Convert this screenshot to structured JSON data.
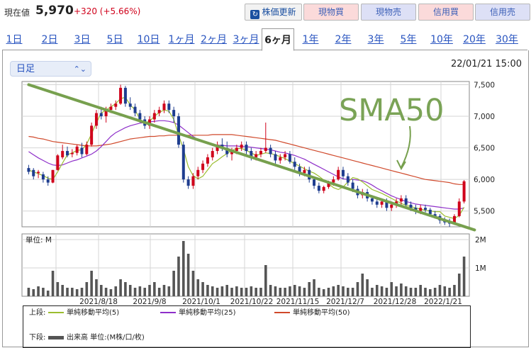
{
  "header": {
    "price_label": "現在値",
    "price": "5,970",
    "change": "+320 (+5.66%)",
    "buttons": {
      "update": "株価更新",
      "cash_buy": "現物買",
      "cash_sell": "現物売",
      "margin_buy": "信用買",
      "margin_sell": "信用売"
    }
  },
  "tabs": [
    "1日",
    "2日",
    "3日",
    "5日",
    "10日",
    "1ヶ月",
    "2ヶ月",
    "3ヶ月",
    "6ヶ月",
    "1年",
    "2年",
    "3年",
    "5年",
    "10年",
    "20年",
    "30年"
  ],
  "active_tab": "6ヶ月",
  "interval_select": "日足",
  "timestamp": "22/01/21 15:00",
  "annotation": "SMA50",
  "colors": {
    "up": "#d0021b",
    "down": "#1e3d8f",
    "sma5": "#9bbd2f",
    "sma25": "#8e2fc9",
    "sma50": "#d0492b",
    "trend": "#77a04e",
    "volume": "#555555"
  },
  "chart_data": {
    "type": "candlestick",
    "price_ylim": [
      5250,
      7550
    ],
    "price_ticks": [
      "7,500",
      "7,000",
      "6,500",
      "6,000",
      "5,500"
    ],
    "volume_ylabel": "単位: M",
    "volume_ticks": [
      "2M",
      "1M"
    ],
    "x_labels": [
      "2021/8/18",
      "2021/9/8",
      "2021/10/1",
      "2021/10/22",
      "2021/11/15",
      "2021/12/7",
      "2021/12/28",
      "2022/1/21"
    ],
    "trendline": {
      "start": {
        "day": 0,
        "price": 7500
      },
      "end": {
        "day": 91,
        "price": 5200
      }
    },
    "sma5": [
      6150,
      6120,
      6090,
      6060,
      6020,
      6000,
      6120,
      6260,
      6390,
      6420,
      6460,
      6470,
      6560,
      6720,
      6900,
      7050,
      7100,
      7150,
      7200,
      7280,
      7300,
      7180,
      7100,
      6950,
      6900,
      6920,
      7000,
      7060,
      7100,
      7080,
      6950,
      6700,
      6480,
      6200,
      6060,
      6010,
      6050,
      6150,
      6250,
      6300,
      6360,
      6410,
      6460,
      6490,
      6490,
      6460,
      6420,
      6380,
      6400,
      6420,
      6410,
      6390,
      6360,
      6330,
      6290,
      6250,
      6210,
      6170,
      6130,
      6100,
      6050,
      5990,
      5930,
      5870,
      5840,
      5880,
      5960,
      6030,
      6010,
      5960,
      5900,
      5840,
      5810,
      5780,
      5740,
      5700,
      5660,
      5620,
      5590,
      5570,
      5550,
      5530,
      5510,
      5500,
      5490,
      5490,
      5420,
      5400,
      5380,
      5430,
      5560
    ],
    "sma25": [
      6440,
      6390,
      6340,
      6300,
      6260,
      6230,
      6220,
      6230,
      6260,
      6290,
      6310,
      6340,
      6370,
      6400,
      6450,
      6520,
      6600,
      6680,
      6740,
      6780,
      6820,
      6850,
      6870,
      6890,
      6900,
      6910,
      6920,
      6930,
      6930,
      6920,
      6900,
      6860,
      6800,
      6740,
      6680,
      6630,
      6600,
      6570,
      6550,
      6540,
      6540,
      6530,
      6530,
      6530,
      6520,
      6520,
      6510,
      6500,
      6490,
      6480,
      6470,
      6450,
      6430,
      6420,
      6400,
      6380,
      6350,
      6320,
      6280,
      6240,
      6200,
      6160,
      6120,
      6080,
      6040,
      6010,
      6000,
      6000,
      5990,
      5980,
      5950,
      5910,
      5860,
      5820,
      5780,
      5740,
      5710,
      5680,
      5650,
      5630,
      5610,
      5600,
      5590,
      5580,
      5570,
      5560,
      5550,
      5540,
      5530,
      5530,
      5550
    ],
    "sma50": [
      6680,
      6670,
      6650,
      6640,
      6620,
      6600,
      6590,
      6580,
      6570,
      6560,
      6550,
      6540,
      6530,
      6530,
      6530,
      6540,
      6550,
      6560,
      6580,
      6600,
      6620,
      6640,
      6650,
      6660,
      6670,
      6680,
      6680,
      6690,
      6690,
      6700,
      6700,
      6700,
      6700,
      6700,
      6700,
      6700,
      6700,
      6700,
      6710,
      6710,
      6710,
      6710,
      6710,
      6700,
      6690,
      6680,
      6670,
      6660,
      6650,
      6640,
      6630,
      6620,
      6600,
      6580,
      6560,
      6540,
      6520,
      6500,
      6480,
      6460,
      6440,
      6420,
      6400,
      6380,
      6360,
      6340,
      6320,
      6300,
      6280,
      6260,
      6240,
      6220,
      6200,
      6180,
      6160,
      6140,
      6120,
      6100,
      6080,
      6060,
      6040,
      6020,
      6000,
      5990,
      5980,
      5970,
      5960,
      5950,
      5930,
      5920,
      5920
    ],
    "candles": [
      [
        6180,
        6230,
        6080,
        6120
      ],
      [
        6150,
        6180,
        6000,
        6050
      ],
      [
        6100,
        6150,
        6020,
        6120
      ],
      [
        6080,
        6120,
        5950,
        6000
      ],
      [
        6000,
        6050,
        5900,
        5950
      ],
      [
        5950,
        6150,
        5940,
        6150
      ],
      [
        6150,
        6400,
        6140,
        6380
      ],
      [
        6350,
        6550,
        6320,
        6450
      ],
      [
        6450,
        6520,
        6350,
        6380
      ],
      [
        6400,
        6480,
        6350,
        6420
      ],
      [
        6420,
        6550,
        6380,
        6520
      ],
      [
        6500,
        6580,
        6350,
        6400
      ],
      [
        6400,
        6600,
        6380,
        6550
      ],
      [
        6550,
        6900,
        6520,
        6850
      ],
      [
        6850,
        7100,
        6800,
        7050
      ],
      [
        7050,
        7150,
        6950,
        7000
      ],
      [
        7000,
        7150,
        6900,
        7100
      ],
      [
        7100,
        7200,
        7050,
        7150
      ],
      [
        7150,
        7250,
        7100,
        7200
      ],
      [
        7200,
        7500,
        7180,
        7450
      ],
      [
        7450,
        7480,
        7150,
        7200
      ],
      [
        7200,
        7300,
        7100,
        7150
      ],
      [
        7150,
        7200,
        7000,
        7050
      ],
      [
        7050,
        7100,
        6900,
        6950
      ],
      [
        6950,
        7000,
        6800,
        6850
      ],
      [
        6850,
        7000,
        6800,
        6950
      ],
      [
        6950,
        7100,
        6900,
        7050
      ],
      [
        7050,
        7150,
        7000,
        7100
      ],
      [
        7100,
        7250,
        7050,
        7200
      ],
      [
        7200,
        7250,
        7050,
        7100
      ],
      [
        7100,
        7150,
        6900,
        7000
      ],
      [
        7000,
        7050,
        6500,
        6550
      ],
      [
        6550,
        6600,
        5950,
        6000
      ],
      [
        6000,
        6050,
        5850,
        5900
      ],
      [
        5900,
        6100,
        5850,
        6050
      ],
      [
        6050,
        6200,
        6000,
        6150
      ],
      [
        6150,
        6300,
        6100,
        6250
      ],
      [
        6250,
        6400,
        6200,
        6350
      ],
      [
        6350,
        6500,
        6300,
        6450
      ],
      [
        6450,
        6600,
        6400,
        6550
      ],
      [
        6550,
        6650,
        6450,
        6500
      ],
      [
        6500,
        6600,
        6350,
        6400
      ],
      [
        6400,
        6500,
        6300,
        6450
      ],
      [
        6450,
        6550,
        6400,
        6500
      ],
      [
        6500,
        6600,
        6450,
        6550
      ],
      [
        6550,
        6600,
        6400,
        6450
      ],
      [
        6450,
        6500,
        6300,
        6350
      ],
      [
        6350,
        6450,
        6300,
        6400
      ],
      [
        6400,
        6500,
        6350,
        6450
      ],
      [
        6450,
        6900,
        6420,
        6500
      ],
      [
        6500,
        6550,
        6350,
        6400
      ],
      [
        6400,
        6450,
        6250,
        6300
      ],
      [
        6300,
        6400,
        6250,
        6350
      ],
      [
        6350,
        6450,
        6300,
        6400
      ],
      [
        6400,
        6450,
        6250,
        6280
      ],
      [
        6280,
        6350,
        6150,
        6200
      ],
      [
        6200,
        6250,
        6050,
        6100
      ],
      [
        6100,
        6200,
        6050,
        6150
      ],
      [
        6150,
        6200,
        5950,
        6000
      ],
      [
        6000,
        6050,
        5850,
        5900
      ],
      [
        5900,
        5950,
        5780,
        5820
      ],
      [
        5820,
        5900,
        5780,
        5880
      ],
      [
        5880,
        5980,
        5850,
        5950
      ],
      [
        5950,
        6050,
        5900,
        6000
      ],
      [
        6000,
        6200,
        5980,
        6150
      ],
      [
        6150,
        6200,
        6000,
        6050
      ],
      [
        6050,
        6100,
        5900,
        5950
      ],
      [
        5950,
        6000,
        5800,
        5850
      ],
      [
        5850,
        5900,
        5700,
        5750
      ],
      [
        5750,
        5850,
        5700,
        5800
      ],
      [
        5800,
        5850,
        5650,
        5700
      ],
      [
        5700,
        5750,
        5600,
        5650
      ],
      [
        5650,
        5700,
        5550,
        5600
      ],
      [
        5600,
        5700,
        5550,
        5650
      ],
      [
        5650,
        5700,
        5500,
        5550
      ],
      [
        5550,
        5650,
        5500,
        5600
      ],
      [
        5600,
        5700,
        5550,
        5650
      ],
      [
        5650,
        5750,
        5600,
        5700
      ],
      [
        5700,
        5750,
        5550,
        5600
      ],
      [
        5600,
        5650,
        5500,
        5550
      ],
      [
        5550,
        5600,
        5450,
        5500
      ],
      [
        5500,
        5600,
        5450,
        5550
      ],
      [
        5550,
        5600,
        5480,
        5520
      ],
      [
        5520,
        5550,
        5420,
        5450
      ],
      [
        5450,
        5500,
        5380,
        5420
      ],
      [
        5420,
        5450,
        5300,
        5350
      ],
      [
        5350,
        5400,
        5280,
        5320
      ],
      [
        5320,
        5380,
        5250,
        5300
      ],
      [
        5300,
        5450,
        5280,
        5420
      ],
      [
        5420,
        5700,
        5400,
        5650
      ],
      [
        5650,
        5990,
        5620,
        5970
      ]
    ],
    "volume": [
      0.3,
      0.25,
      0.35,
      0.3,
      0.2,
      0.9,
      0.5,
      0.4,
      0.3,
      0.3,
      0.25,
      0.3,
      0.5,
      0.9,
      0.6,
      0.4,
      0.3,
      0.25,
      0.35,
      0.6,
      0.5,
      0.4,
      0.3,
      0.35,
      0.3,
      0.4,
      0.5,
      0.3,
      0.4,
      0.35,
      0.9,
      1.4,
      1.95,
      1.5,
      0.9,
      0.6,
      0.5,
      0.4,
      0.35,
      0.3,
      0.35,
      0.4,
      0.3,
      0.35,
      0.3,
      0.3,
      0.35,
      0.3,
      0.3,
      1.1,
      0.4,
      0.35,
      0.3,
      0.3,
      0.35,
      0.4,
      0.35,
      0.3,
      0.5,
      0.6,
      0.3,
      0.25,
      0.3,
      0.35,
      0.4,
      0.35,
      0.3,
      0.3,
      0.5,
      0.8,
      0.6,
      0.3,
      0.4,
      0.35,
      0.3,
      0.5,
      0.35,
      0.45,
      0.35,
      0.3,
      0.3,
      0.4,
      0.3,
      0.25,
      0.3,
      0.4,
      0.35,
      0.3,
      0.4,
      0.8,
      1.4
    ]
  },
  "legend": {
    "upper_label": "上段:",
    "sma5": "単純移動平均(5)",
    "sma25": "単純移動平均(25)",
    "sma50": "単純移動平均(50)",
    "lower_label": "下段:",
    "volume": "出来高 単位:(M株/口/枚)"
  }
}
